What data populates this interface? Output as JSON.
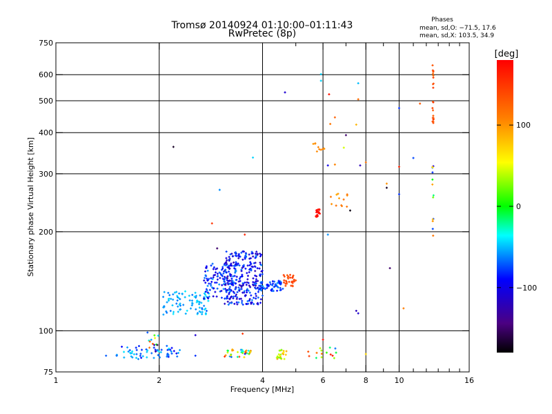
{
  "chart_data": {
    "type": "scatter",
    "title": "Tromsø 20140924 01:10:00–01:11:43",
    "subtitle": "RwPretec (8p)",
    "xlabel": "Frequency [MHz]",
    "ylabel": "Stationary phase Virtual Height [km]",
    "x_scale": "log",
    "y_scale": "log",
    "xlim": [
      1,
      16
    ],
    "ylim": [
      75,
      750
    ],
    "x_ticks": [
      1,
      2,
      4,
      6,
      8,
      10,
      16
    ],
    "x_tick_labels": [
      "1",
      "2",
      "4",
      "6",
      "8",
      "10",
      "16"
    ],
    "x_grid": [
      2,
      4,
      6,
      8,
      10
    ],
    "x_minor_ticks": [
      5,
      7,
      9,
      11,
      12,
      13,
      14,
      15
    ],
    "y_ticks": [
      75,
      100,
      200,
      300,
      400,
      500,
      600,
      750
    ],
    "y_tick_labels": [
      "75",
      "100",
      "200",
      "300",
      "400",
      "500",
      "600",
      "750"
    ],
    "y_grid": [
      100,
      200,
      300,
      400,
      500,
      600
    ],
    "grid": true,
    "stats": {
      "heading": "Phases",
      "line_o": "mean, sd,O: −71.5, 17.6",
      "line_x": "mean, sd,X: 103.5, 34.9"
    },
    "colorbar": {
      "label": "[deg]",
      "range": [
        -180,
        180
      ],
      "ticks": [
        100,
        0,
        -100
      ],
      "tick_labels": [
        "100",
        "0",
        "−100"
      ]
    },
    "clusters": [
      {
        "f": [
          1.5,
          2.3
        ],
        "h": [
          82,
          90
        ],
        "phase": [
          -95,
          -40
        ],
        "n": 60
      },
      {
        "f": [
          1.8,
          2.0
        ],
        "h": [
          86,
          104
        ],
        "phase": [
          -170,
          150
        ],
        "n": 14
      },
      {
        "f": [
          3.1,
          3.7
        ],
        "h": [
          83,
          88
        ],
        "phase": [
          -110,
          160
        ],
        "n": 36
      },
      {
        "f": [
          4.4,
          4.7
        ],
        "h": [
          82,
          88
        ],
        "phase": [
          20,
          110
        ],
        "n": 22
      },
      {
        "f": [
          5.4,
          6.6
        ],
        "h": [
          82,
          90
        ],
        "phase": [
          -120,
          170
        ],
        "n": 14
      },
      {
        "f": [
          2.05,
          2.8
        ],
        "h": [
          112,
          132
        ],
        "phase": [
          -70,
          -40
        ],
        "n": 90
      },
      {
        "f": [
          2.7,
          3.4
        ],
        "h": [
          125,
          160
        ],
        "phase": [
          -110,
          -55
        ],
        "n": 120
      },
      {
        "f": [
          3.1,
          4.0
        ],
        "h": [
          120,
          175
        ],
        "phase": [
          -125,
          -60
        ],
        "n": 260
      },
      {
        "f": [
          3.9,
          4.6
        ],
        "h": [
          132,
          142
        ],
        "phase": [
          -95,
          -55
        ],
        "n": 60
      },
      {
        "f": [
          4.6,
          5.0
        ],
        "h": [
          136,
          148
        ],
        "phase": [
          130,
          150
        ],
        "n": 30
      },
      {
        "f": [
          5.72,
          5.9
        ],
        "h": [
          222,
          234
        ],
        "phase": [
          165,
          180
        ],
        "n": 20
      },
      {
        "f": [
          6.3,
          7.1
        ],
        "h": [
          238,
          262
        ],
        "phase": [
          85,
          120
        ],
        "n": 12
      },
      {
        "f": [
          5.6,
          6.1
        ],
        "h": [
          350,
          372
        ],
        "phase": [
          95,
          115
        ],
        "n": 10
      },
      {
        "f": [
          12.5,
          12.6
        ],
        "h": [
          420,
          650
        ],
        "phase": [
          120,
          150
        ],
        "n": 22
      },
      {
        "f": [
          12.5,
          12.6
        ],
        "h": [
          190,
          320
        ],
        "phase": [
          -100,
          130
        ],
        "n": 14
      }
    ],
    "points": [
      {
        "f": 4.65,
        "h": 530,
        "phase": -110
      },
      {
        "f": 2.2,
        "h": 362,
        "phase": -170
      },
      {
        "f": 3.0,
        "h": 268,
        "phase": -60
      },
      {
        "f": 2.85,
        "h": 212,
        "phase": 150
      },
      {
        "f": 3.75,
        "h": 336,
        "phase": -45
      },
      {
        "f": 5.92,
        "h": 602,
        "phase": -45
      },
      {
        "f": 5.92,
        "h": 575,
        "phase": -45
      },
      {
        "f": 6.25,
        "h": 523,
        "phase": 170
      },
      {
        "f": 7.6,
        "h": 565,
        "phase": -50
      },
      {
        "f": 7.6,
        "h": 505,
        "phase": 120
      },
      {
        "f": 6.3,
        "h": 425,
        "phase": 115
      },
      {
        "f": 6.5,
        "h": 445,
        "phase": 125
      },
      {
        "f": 7.0,
        "h": 393,
        "phase": -150
      },
      {
        "f": 7.5,
        "h": 423,
        "phase": 85
      },
      {
        "f": 6.2,
        "h": 318,
        "phase": -100
      },
      {
        "f": 6.5,
        "h": 320,
        "phase": 105
      },
      {
        "f": 6.9,
        "h": 360,
        "phase": 45
      },
      {
        "f": 7.7,
        "h": 318,
        "phase": -120
      },
      {
        "f": 8.0,
        "h": 325,
        "phase": 115
      },
      {
        "f": 10.0,
        "h": 315,
        "phase": 160
      },
      {
        "f": 10.0,
        "h": 475,
        "phase": -80
      },
      {
        "f": 11.0,
        "h": 335,
        "phase": -75
      },
      {
        "f": 11.5,
        "h": 490,
        "phase": 130
      },
      {
        "f": 9.2,
        "h": 280,
        "phase": 100
      },
      {
        "f": 9.2,
        "h": 272,
        "phase": -170
      },
      {
        "f": 10.0,
        "h": 260,
        "phase": -80
      },
      {
        "f": 7.2,
        "h": 232,
        "phase": -175
      },
      {
        "f": 6.2,
        "h": 196,
        "phase": -60
      },
      {
        "f": 9.4,
        "h": 155,
        "phase": -150
      },
      {
        "f": 10.3,
        "h": 117,
        "phase": 110
      },
      {
        "f": 7.5,
        "h": 115,
        "phase": -120
      },
      {
        "f": 7.6,
        "h": 113,
        "phase": -110
      },
      {
        "f": 8.0,
        "h": 85,
        "phase": 70
      },
      {
        "f": 6.4,
        "h": 84,
        "phase": 170
      },
      {
        "f": 6.0,
        "h": 94,
        "phase": 175
      },
      {
        "f": 1.4,
        "h": 84,
        "phase": -70
      },
      {
        "f": 2.55,
        "h": 84,
        "phase": -80
      },
      {
        "f": 3.5,
        "h": 98,
        "phase": 150
      },
      {
        "f": 2.55,
        "h": 97,
        "phase": -110
      },
      {
        "f": 2.95,
        "h": 178,
        "phase": -150
      },
      {
        "f": 3.55,
        "h": 196,
        "phase": 160
      }
    ]
  }
}
